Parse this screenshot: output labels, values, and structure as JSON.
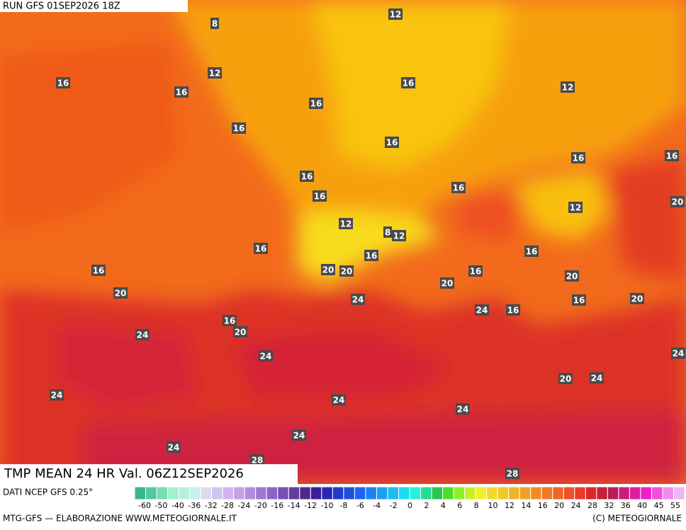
{
  "header": {
    "run": "RUN GFS 01SEP2026 18Z"
  },
  "title": "TMP MEAN 24 HR Val. 06Z12SEP2026",
  "source": "DATI NCEP GFS 0.25°",
  "footer": {
    "left": "MTG-GFS — ELABORAZIONE WWW.METEOGIORNALE.IT",
    "right": "(C) METEOGIORNALE"
  },
  "map": {
    "contour_labels": [
      12,
      8,
      16,
      12,
      16,
      16,
      12,
      16,
      16,
      16,
      16,
      16,
      16,
      16,
      16,
      12,
      20,
      12,
      8,
      12,
      16,
      16,
      16,
      20,
      20,
      16,
      16,
      20,
      20,
      24,
      20,
      16,
      20,
      24,
      16,
      16,
      20,
      24,
      24,
      24,
      20,
      24,
      24,
      24,
      24,
      24,
      24,
      28,
      28
    ]
  },
  "legend": {
    "labels": [
      -60,
      -50,
      -40,
      -36,
      -32,
      -28,
      -24,
      -20,
      -16,
      -14,
      -12,
      -10,
      -8,
      -6,
      -4,
      -2,
      0,
      2,
      4,
      6,
      8,
      10,
      12,
      14,
      16,
      20,
      24,
      28,
      32,
      36,
      40,
      45,
      55
    ],
    "colors": [
      "#3cb48c",
      "#50c8a0",
      "#78dcb4",
      "#a0f0c8",
      "#b4f0dc",
      "#c8f0f0",
      "#dcdcf0",
      "#c8c8f0",
      "#d2b4f0",
      "#c8a0e6",
      "#b48cdc",
      "#a078d2",
      "#8c64c8",
      "#7850b4",
      "#643ca0",
      "#50288c",
      "#3c1e96",
      "#2828b4",
      "#1e3cc8",
      "#1e50dc",
      "#1e64f0",
      "#1e82f0",
      "#1ea0f0",
      "#1ebef0",
      "#1edcf0",
      "#28f0dc",
      "#28dc96",
      "#28c850",
      "#50dc28",
      "#8cf028",
      "#c8f028",
      "#f0f028",
      "#f0dc28",
      "#f0c828",
      "#f0b428",
      "#f0a028",
      "#f08c28",
      "#f07828",
      "#f06428",
      "#f05028",
      "#e63c28",
      "#dc2828",
      "#c81e3c",
      "#b41e50",
      "#c81e78",
      "#dc1ea0",
      "#f01ec8",
      "#f050dc",
      "#f08cf0",
      "#f0b4f0"
    ]
  }
}
